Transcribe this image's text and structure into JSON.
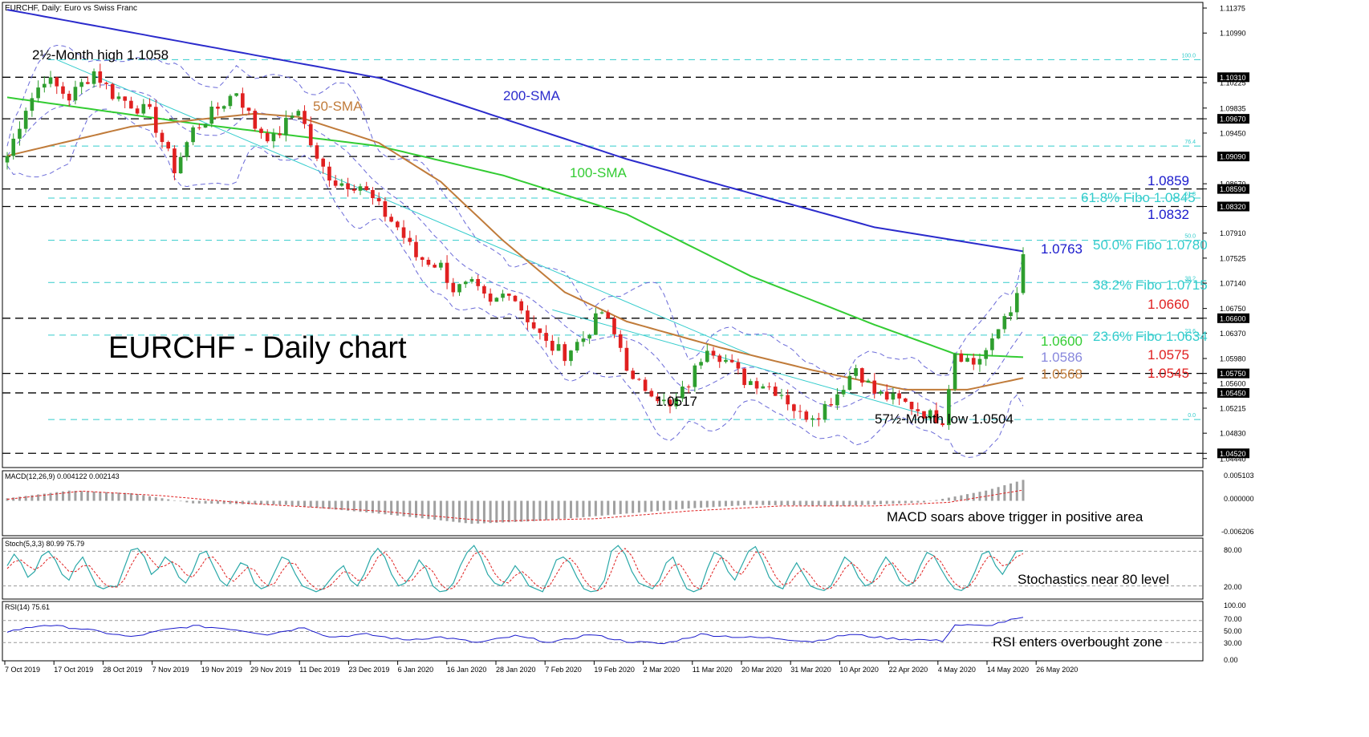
{
  "header": {
    "title": "EURCHF, Daily:  Euro vs Swiss Franc"
  },
  "chart_data": {
    "type": "candlestick",
    "title": "EURCHF - Daily chart",
    "ylim": [
      1.044,
      1.114
    ],
    "price_ticks": [
      "1.11375",
      "1.10990",
      "1.10310",
      "1.10225",
      "1.09835",
      "1.09670",
      "1.09450",
      "1.09090",
      "1.08670",
      "1.08590",
      "1.08320",
      "1.07910",
      "1.07525",
      "1.07140",
      "1.06750",
      "1.06600",
      "1.06370",
      "1.05980",
      "1.05750",
      "1.05600",
      "1.05450",
      "1.05215",
      "1.04830",
      "1.04520",
      "1.04440"
    ],
    "price_tick_values": [
      1.11375,
      1.1099,
      1.1031,
      1.10225,
      1.09835,
      1.0967,
      1.0945,
      1.0909,
      1.0867,
      1.0859,
      1.0832,
      1.0791,
      1.07525,
      1.0714,
      1.0675,
      1.066,
      1.0637,
      1.0598,
      1.0575,
      1.056,
      1.0545,
      1.05215,
      1.0483,
      1.0452,
      1.0444
    ],
    "boxed_levels": [
      1.1031,
      1.0967,
      1.0909,
      1.0859,
      1.0832,
      1.066,
      1.0575,
      1.0545,
      1.0452
    ],
    "black_dashed_levels": [
      1.1031,
      1.0967,
      1.0909,
      1.0859,
      1.0832,
      1.066,
      1.0575,
      1.0545,
      1.0452
    ],
    "fibo_levels": [
      {
        "label": "100.0",
        "value": 1.1058
      },
      {
        "label": "76.4",
        "value": 1.0925
      },
      {
        "label": "61.8",
        "value": 1.0845
      },
      {
        "label": "50.0",
        "value": 1.078
      },
      {
        "label": "38.2",
        "value": 1.0715
      },
      {
        "label": "23.6",
        "value": 1.0634
      },
      {
        "label": "0.0",
        "value": 1.0504
      }
    ],
    "x_labels": [
      "7 Oct 2019",
      "17 Oct 2019",
      "28 Oct 2019",
      "7 Nov 2019",
      "19 Nov 2019",
      "29 Nov 2019",
      "11 Dec 2019",
      "23 Dec 2019",
      "6 Jan 2020",
      "16 Jan 2020",
      "28 Jan 2020",
      "7 Feb 2020",
      "19 Feb 2020",
      "2 Mar 2020",
      "11 Mar 2020",
      "20 Mar 2020",
      "31 Mar 2020",
      "10 Apr 2020",
      "22 Apr 2020",
      "4 May 2020",
      "14 May 2020",
      "26 May 2020"
    ],
    "candle_count": 165,
    "close_anchors": [
      {
        "bar": 0,
        "close": 1.091
      },
      {
        "bar": 3,
        "close": 1.0985
      },
      {
        "bar": 6,
        "close": 1.103
      },
      {
        "bar": 10,
        "close": 1.1
      },
      {
        "bar": 14,
        "close": 1.104
      },
      {
        "bar": 17,
        "close": 1.1005
      },
      {
        "bar": 20,
        "close": 1.099
      },
      {
        "bar": 23,
        "close": 1.0975
      },
      {
        "bar": 27,
        "close": 1.089
      },
      {
        "bar": 30,
        "close": 1.095
      },
      {
        "bar": 33,
        "close": 1.0975
      },
      {
        "bar": 37,
        "close": 1.101
      },
      {
        "bar": 40,
        "close": 1.0955
      },
      {
        "bar": 43,
        "close": 1.0935
      },
      {
        "bar": 47,
        "close": 1.0985
      },
      {
        "bar": 50,
        "close": 1.09
      },
      {
        "bar": 53,
        "close": 1.087
      },
      {
        "bar": 57,
        "close": 1.0865
      },
      {
        "bar": 60,
        "close": 1.083
      },
      {
        "bar": 63,
        "close": 1.08
      },
      {
        "bar": 66,
        "close": 1.0755
      },
      {
        "bar": 70,
        "close": 1.074
      },
      {
        "bar": 72,
        "close": 1.0705
      },
      {
        "bar": 75,
        "close": 1.071
      },
      {
        "bar": 78,
        "close": 1.068
      },
      {
        "bar": 81,
        "close": 1.0705
      },
      {
        "bar": 84,
        "close": 1.066
      },
      {
        "bar": 87,
        "close": 1.062
      },
      {
        "bar": 90,
        "close": 1.0605
      },
      {
        "bar": 93,
        "close": 1.063
      },
      {
        "bar": 96,
        "close": 1.067
      },
      {
        "bar": 99,
        "close": 1.0615
      },
      {
        "bar": 101,
        "close": 1.056
      },
      {
        "bar": 104,
        "close": 1.055
      },
      {
        "bar": 107,
        "close": 1.052
      },
      {
        "bar": 110,
        "close": 1.056
      },
      {
        "bar": 113,
        "close": 1.062
      },
      {
        "bar": 116,
        "close": 1.0595
      },
      {
        "bar": 119,
        "close": 1.0565
      },
      {
        "bar": 122,
        "close": 1.056
      },
      {
        "bar": 125,
        "close": 1.0545
      },
      {
        "bar": 128,
        "close": 1.051
      },
      {
        "bar": 131,
        "close": 1.0515
      },
      {
        "bar": 134,
        "close": 1.0545
      },
      {
        "bar": 137,
        "close": 1.0585
      },
      {
        "bar": 140,
        "close": 1.0545
      },
      {
        "bar": 143,
        "close": 1.0535
      },
      {
        "bar": 146,
        "close": 1.0525
      },
      {
        "bar": 149,
        "close": 1.051
      },
      {
        "bar": 151,
        "close": 1.0505
      },
      {
        "bar": 153,
        "close": 1.061
      },
      {
        "bar": 156,
        "close": 1.059
      },
      {
        "bar": 159,
        "close": 1.062
      },
      {
        "bar": 161,
        "close": 1.0665
      },
      {
        "bar": 163,
        "close": 1.069
      },
      {
        "bar": 164,
        "close": 1.0755
      }
    ],
    "sma200_anchors": [
      {
        "bar": 0,
        "value": 1.1135
      },
      {
        "bar": 60,
        "value": 1.103
      },
      {
        "bar": 100,
        "value": 1.0905
      },
      {
        "bar": 140,
        "value": 1.08
      },
      {
        "bar": 164,
        "value": 1.0763
      }
    ],
    "sma100_anchors": [
      {
        "bar": 0,
        "value": 1.1
      },
      {
        "bar": 30,
        "value": 1.096
      },
      {
        "bar": 60,
        "value": 1.0925
      },
      {
        "bar": 80,
        "value": 1.088
      },
      {
        "bar": 100,
        "value": 1.082
      },
      {
        "bar": 120,
        "value": 1.0725
      },
      {
        "bar": 140,
        "value": 1.065
      },
      {
        "bar": 153,
        "value": 1.0605
      },
      {
        "bar": 164,
        "value": 1.06
      }
    ],
    "sma50_anchors": [
      {
        "bar": 0,
        "value": 1.091
      },
      {
        "bar": 20,
        "value": 1.0955
      },
      {
        "bar": 40,
        "value": 1.0975
      },
      {
        "bar": 47,
        "value": 1.097
      },
      {
        "bar": 60,
        "value": 1.093
      },
      {
        "bar": 70,
        "value": 1.087
      },
      {
        "bar": 80,
        "value": 1.078
      },
      {
        "bar": 90,
        "value": 1.07
      },
      {
        "bar": 100,
        "value": 1.0655
      },
      {
        "bar": 115,
        "value": 1.0615
      },
      {
        "bar": 130,
        "value": 1.058
      },
      {
        "bar": 145,
        "value": 1.055
      },
      {
        "bar": 155,
        "value": 1.055
      },
      {
        "bar": 164,
        "value": 1.0568
      }
    ],
    "series": [
      {
        "name": "200-SMA",
        "color": "#2b2bcc"
      },
      {
        "name": "100-SMA",
        "color": "#33cc33"
      },
      {
        "name": "50-SMA",
        "color": "#c07b3a"
      }
    ],
    "annotations": [
      {
        "text": "2½-Month high 1.1058"
      },
      {
        "text": "1.0517"
      },
      {
        "text": "57½-Month low 1.0504"
      }
    ],
    "right_labels": [
      {
        "text": "1.0859",
        "color": "#1a1acc"
      },
      {
        "text": "61.8% Fibo 1.0845",
        "color": "#33cccc"
      },
      {
        "text": "1.0832",
        "color": "#1a1acc"
      },
      {
        "text": "1.0763",
        "color": "#1a1acc"
      },
      {
        "text": "50.0% Fibo 1.0780",
        "color": "#33cccc"
      },
      {
        "text": "38.2% Fibo 1.0715",
        "color": "#33cccc"
      },
      {
        "text": "1.0660",
        "color": "#e02020"
      },
      {
        "text": "23.6% Fibo 1.0634",
        "color": "#33cccc"
      },
      {
        "text": "1.0600",
        "color": "#33cc33"
      },
      {
        "text": "1.0586",
        "color": "#8888dd"
      },
      {
        "text": "1.0575",
        "color": "#e02020"
      },
      {
        "text": "1.0545",
        "color": "#e02020"
      },
      {
        "text": "1.0568",
        "color": "#c07b3a"
      }
    ],
    "colors": {
      "bull": "#2e9e2e",
      "bear": "#e02020",
      "fibo": "#33cccc",
      "bollinger": "#6a6ad8",
      "trendline": "#33cccc"
    }
  },
  "macd": {
    "label": "MACD(12,26,9) 0.004122 0.002143",
    "ticks": [
      "0.005103",
      "0.000000",
      "-0.006206"
    ],
    "ylim": [
      -0.006206,
      0.005103
    ],
    "note": "MACD soars above trigger in positive area",
    "hist_anchors": [
      {
        "bar": 0,
        "value": 0.0005
      },
      {
        "bar": 10,
        "value": 0.002
      },
      {
        "bar": 20,
        "value": 0.0015
      },
      {
        "bar": 30,
        "value": -0.0005
      },
      {
        "bar": 45,
        "value": -0.0008
      },
      {
        "bar": 60,
        "value": -0.0025
      },
      {
        "bar": 75,
        "value": -0.0045
      },
      {
        "bar": 85,
        "value": -0.004
      },
      {
        "bar": 100,
        "value": -0.0025
      },
      {
        "bar": 110,
        "value": -0.0015
      },
      {
        "bar": 120,
        "value": -0.0008
      },
      {
        "bar": 135,
        "value": -0.001
      },
      {
        "bar": 148,
        "value": -0.0003
      },
      {
        "bar": 158,
        "value": 0.002
      },
      {
        "bar": 164,
        "value": 0.0041
      }
    ],
    "signal_anchors": [
      {
        "bar": 0,
        "value": 0.0003
      },
      {
        "bar": 12,
        "value": 0.0019
      },
      {
        "bar": 25,
        "value": 0.001
      },
      {
        "bar": 40,
        "value": -0.0006
      },
      {
        "bar": 60,
        "value": -0.002
      },
      {
        "bar": 78,
        "value": -0.004
      },
      {
        "bar": 95,
        "value": -0.0035
      },
      {
        "bar": 110,
        "value": -0.002
      },
      {
        "bar": 125,
        "value": -0.001
      },
      {
        "bar": 140,
        "value": -0.001
      },
      {
        "bar": 152,
        "value": -0.0003
      },
      {
        "bar": 164,
        "value": 0.0021
      }
    ]
  },
  "stoch": {
    "label": "Stoch(5,3,3) 80.99 75.79",
    "ticks": [
      "80.00",
      "20.00"
    ],
    "tick_values": [
      80,
      20
    ],
    "note": "Stochastics near 80 level",
    "k_values": [
      55,
      75,
      60,
      35,
      45,
      72,
      80,
      65,
      40,
      30,
      55,
      70,
      45,
      20,
      15,
      20,
      18,
      50,
      82,
      85,
      70,
      40,
      50,
      70,
      60,
      35,
      25,
      45,
      75,
      80,
      55,
      30,
      20,
      40,
      60,
      55,
      25,
      15,
      20,
      45,
      70,
      65,
      40,
      20,
      15,
      10,
      15,
      30,
      45,
      55,
      30,
      20,
      40,
      70,
      85,
      70,
      40,
      20,
      25,
      40,
      65,
      50,
      20,
      10,
      12,
      25,
      55,
      78,
      90,
      70,
      40,
      25,
      20,
      35,
      55,
      40,
      20,
      15,
      10,
      35,
      65,
      70,
      60,
      35,
      15,
      10,
      12,
      30,
      80,
      90,
      75,
      45,
      25,
      20,
      15,
      30,
      60,
      70,
      40,
      15,
      10,
      15,
      50,
      78,
      72,
      45,
      30,
      55,
      80,
      88,
      65,
      35,
      20,
      15,
      40,
      60,
      40,
      20,
      15,
      12,
      20,
      45,
      70,
      60,
      35,
      20,
      25,
      50,
      70,
      55,
      30,
      20,
      25,
      55,
      78,
      72,
      50,
      30,
      15,
      12,
      20,
      45,
      75,
      80,
      55,
      40,
      60,
      80,
      81
    ],
    "d_values": [
      50,
      62,
      65,
      55,
      48,
      55,
      68,
      70,
      58,
      45,
      45,
      55,
      55,
      40,
      25,
      18,
      18,
      30,
      55,
      75,
      80,
      65,
      52,
      55,
      62,
      55,
      40,
      35,
      50,
      68,
      70,
      55,
      35,
      28,
      40,
      52,
      48,
      30,
      20,
      25,
      45,
      60,
      58,
      40,
      25,
      15,
      14,
      20,
      32,
      45,
      42,
      30,
      30,
      48,
      70,
      78,
      65,
      42,
      28,
      30,
      45,
      55,
      45,
      25,
      14,
      16,
      32,
      55,
      75,
      80,
      65,
      42,
      28,
      25,
      38,
      45,
      35,
      22,
      15,
      20,
      40,
      60,
      68,
      55,
      32,
      18,
      12,
      18,
      45,
      75,
      85,
      72,
      45,
      28,
      20,
      20,
      38,
      55,
      58,
      40,
      20,
      14,
      25,
      50,
      70,
      62,
      45,
      40,
      58,
      78,
      78,
      58,
      35,
      22,
      25,
      40,
      50,
      38,
      22,
      15,
      16,
      30,
      50,
      60,
      50,
      32,
      25,
      35,
      55,
      60,
      45,
      30,
      25,
      38,
      60,
      72,
      62,
      42,
      25,
      16,
      18,
      32,
      55,
      72,
      68,
      55,
      58,
      70,
      75.79
    ]
  },
  "rsi": {
    "label": "RSI(14) 75.61",
    "ticks": [
      "100.00",
      "70.00",
      "50.00",
      "30.00",
      "0.00"
    ],
    "tick_values": [
      100,
      70,
      50,
      30,
      0
    ],
    "note": "RSI enters overbought zone",
    "anchors": [
      {
        "bar": 0,
        "value": 50
      },
      {
        "bar": 6,
        "value": 62
      },
      {
        "bar": 12,
        "value": 55
      },
      {
        "bar": 20,
        "value": 40
      },
      {
        "bar": 25,
        "value": 52
      },
      {
        "bar": 30,
        "value": 60
      },
      {
        "bar": 36,
        "value": 55
      },
      {
        "bar": 42,
        "value": 45
      },
      {
        "bar": 48,
        "value": 58
      },
      {
        "bar": 52,
        "value": 40
      },
      {
        "bar": 58,
        "value": 45
      },
      {
        "bar": 64,
        "value": 35
      },
      {
        "bar": 70,
        "value": 40
      },
      {
        "bar": 76,
        "value": 30
      },
      {
        "bar": 82,
        "value": 42
      },
      {
        "bar": 88,
        "value": 30
      },
      {
        "bar": 94,
        "value": 45
      },
      {
        "bar": 100,
        "value": 32
      },
      {
        "bar": 106,
        "value": 28
      },
      {
        "bar": 112,
        "value": 45
      },
      {
        "bar": 118,
        "value": 40
      },
      {
        "bar": 124,
        "value": 38
      },
      {
        "bar": 130,
        "value": 32
      },
      {
        "bar": 136,
        "value": 45
      },
      {
        "bar": 142,
        "value": 38
      },
      {
        "bar": 148,
        "value": 35
      },
      {
        "bar": 151,
        "value": 33
      },
      {
        "bar": 153,
        "value": 62
      },
      {
        "bar": 158,
        "value": 60
      },
      {
        "bar": 161,
        "value": 68
      },
      {
        "bar": 164,
        "value": 75.61
      }
    ]
  }
}
